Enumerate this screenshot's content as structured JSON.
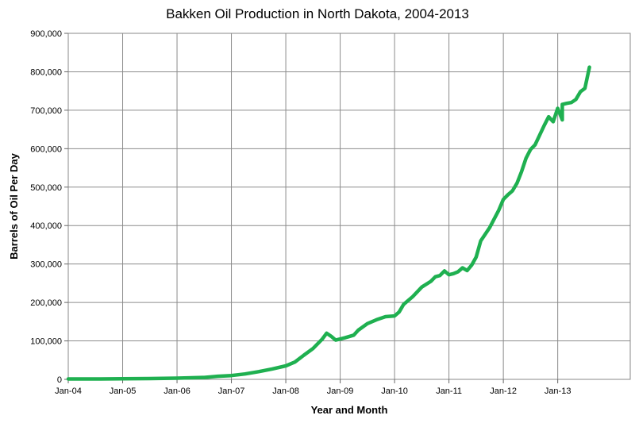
{
  "chart_data": {
    "type": "line",
    "title": "Bakken Oil Production in North Dakota, 2004-2013",
    "xlabel": "Year and Month",
    "ylabel": "Barrels of Oil Per Day",
    "ylim": [
      0,
      900000
    ],
    "xlim": [
      "2004-01",
      "2014-05"
    ],
    "grid": true,
    "legend": "none",
    "line_color": "#1fb050",
    "x_tick_labels": [
      "Jan-04",
      "Jan-05",
      "Jan-06",
      "Jan-07",
      "Jan-08",
      "Jan-09",
      "Jan-10",
      "Jan-11",
      "Jan-12",
      "Jan-13"
    ],
    "x_tick_dates": [
      "2004-01",
      "2005-01",
      "2006-01",
      "2007-01",
      "2008-01",
      "2009-01",
      "2010-01",
      "2011-01",
      "2012-01",
      "2013-01"
    ],
    "y_tick_labels": [
      "0",
      "100,000",
      "200,000",
      "300,000",
      "400,000",
      "500,000",
      "600,000",
      "700,000",
      "800,000",
      "900,000"
    ],
    "y_tick_values": [
      0,
      100000,
      200000,
      300000,
      400000,
      500000,
      600000,
      700000,
      800000,
      900000
    ],
    "series": [
      {
        "points": [
          [
            "2004-01",
            1000
          ],
          [
            "2004-07",
            1000
          ],
          [
            "2005-01",
            1500
          ],
          [
            "2005-07",
            2000
          ],
          [
            "2006-01",
            3000
          ],
          [
            "2006-07",
            5000
          ],
          [
            "2006-10",
            8000
          ],
          [
            "2007-01",
            10000
          ],
          [
            "2007-04",
            14000
          ],
          [
            "2007-07",
            20000
          ],
          [
            "2007-10",
            27000
          ],
          [
            "2008-01",
            35000
          ],
          [
            "2008-03",
            45000
          ],
          [
            "2008-05",
            63000
          ],
          [
            "2008-07",
            80000
          ],
          [
            "2008-09",
            104000
          ],
          [
            "2008-10",
            120000
          ],
          [
            "2008-11",
            112000
          ],
          [
            "2008-12",
            102000
          ],
          [
            "2009-02",
            108000
          ],
          [
            "2009-04",
            115000
          ],
          [
            "2009-05",
            128000
          ],
          [
            "2009-07",
            145000
          ],
          [
            "2009-09",
            155000
          ],
          [
            "2009-11",
            163000
          ],
          [
            "2010-01",
            165000
          ],
          [
            "2010-02",
            175000
          ],
          [
            "2010-03",
            195000
          ],
          [
            "2010-05",
            215000
          ],
          [
            "2010-07",
            240000
          ],
          [
            "2010-09",
            255000
          ],
          [
            "2010-10",
            267000
          ],
          [
            "2010-11",
            270000
          ],
          [
            "2010-12",
            282000
          ],
          [
            "2011-01",
            272000
          ],
          [
            "2011-02",
            275000
          ],
          [
            "2011-03",
            280000
          ],
          [
            "2011-04",
            290000
          ],
          [
            "2011-05",
            283000
          ],
          [
            "2011-06",
            297000
          ],
          [
            "2011-07",
            318000
          ],
          [
            "2011-08",
            360000
          ],
          [
            "2011-10",
            395000
          ],
          [
            "2011-12",
            440000
          ],
          [
            "2012-01",
            468000
          ],
          [
            "2012-02",
            480000
          ],
          [
            "2012-03",
            490000
          ],
          [
            "2012-04",
            510000
          ],
          [
            "2012-05",
            540000
          ],
          [
            "2012-06",
            575000
          ],
          [
            "2012-07",
            598000
          ],
          [
            "2012-08",
            610000
          ],
          [
            "2012-09",
            635000
          ],
          [
            "2012-10",
            660000
          ],
          [
            "2012-11",
            683000
          ],
          [
            "2012-12",
            670000
          ],
          [
            "2013-01",
            705000
          ],
          [
            "2013-02",
            675000
          ],
          [
            "2013-02",
            715000
          ],
          [
            "2013-03",
            718000
          ],
          [
            "2013-04",
            720000
          ],
          [
            "2013-05",
            728000
          ],
          [
            "2013-06",
            748000
          ],
          [
            "2013-07",
            757000
          ],
          [
            "2013-08",
            812000
          ]
        ]
      }
    ]
  }
}
